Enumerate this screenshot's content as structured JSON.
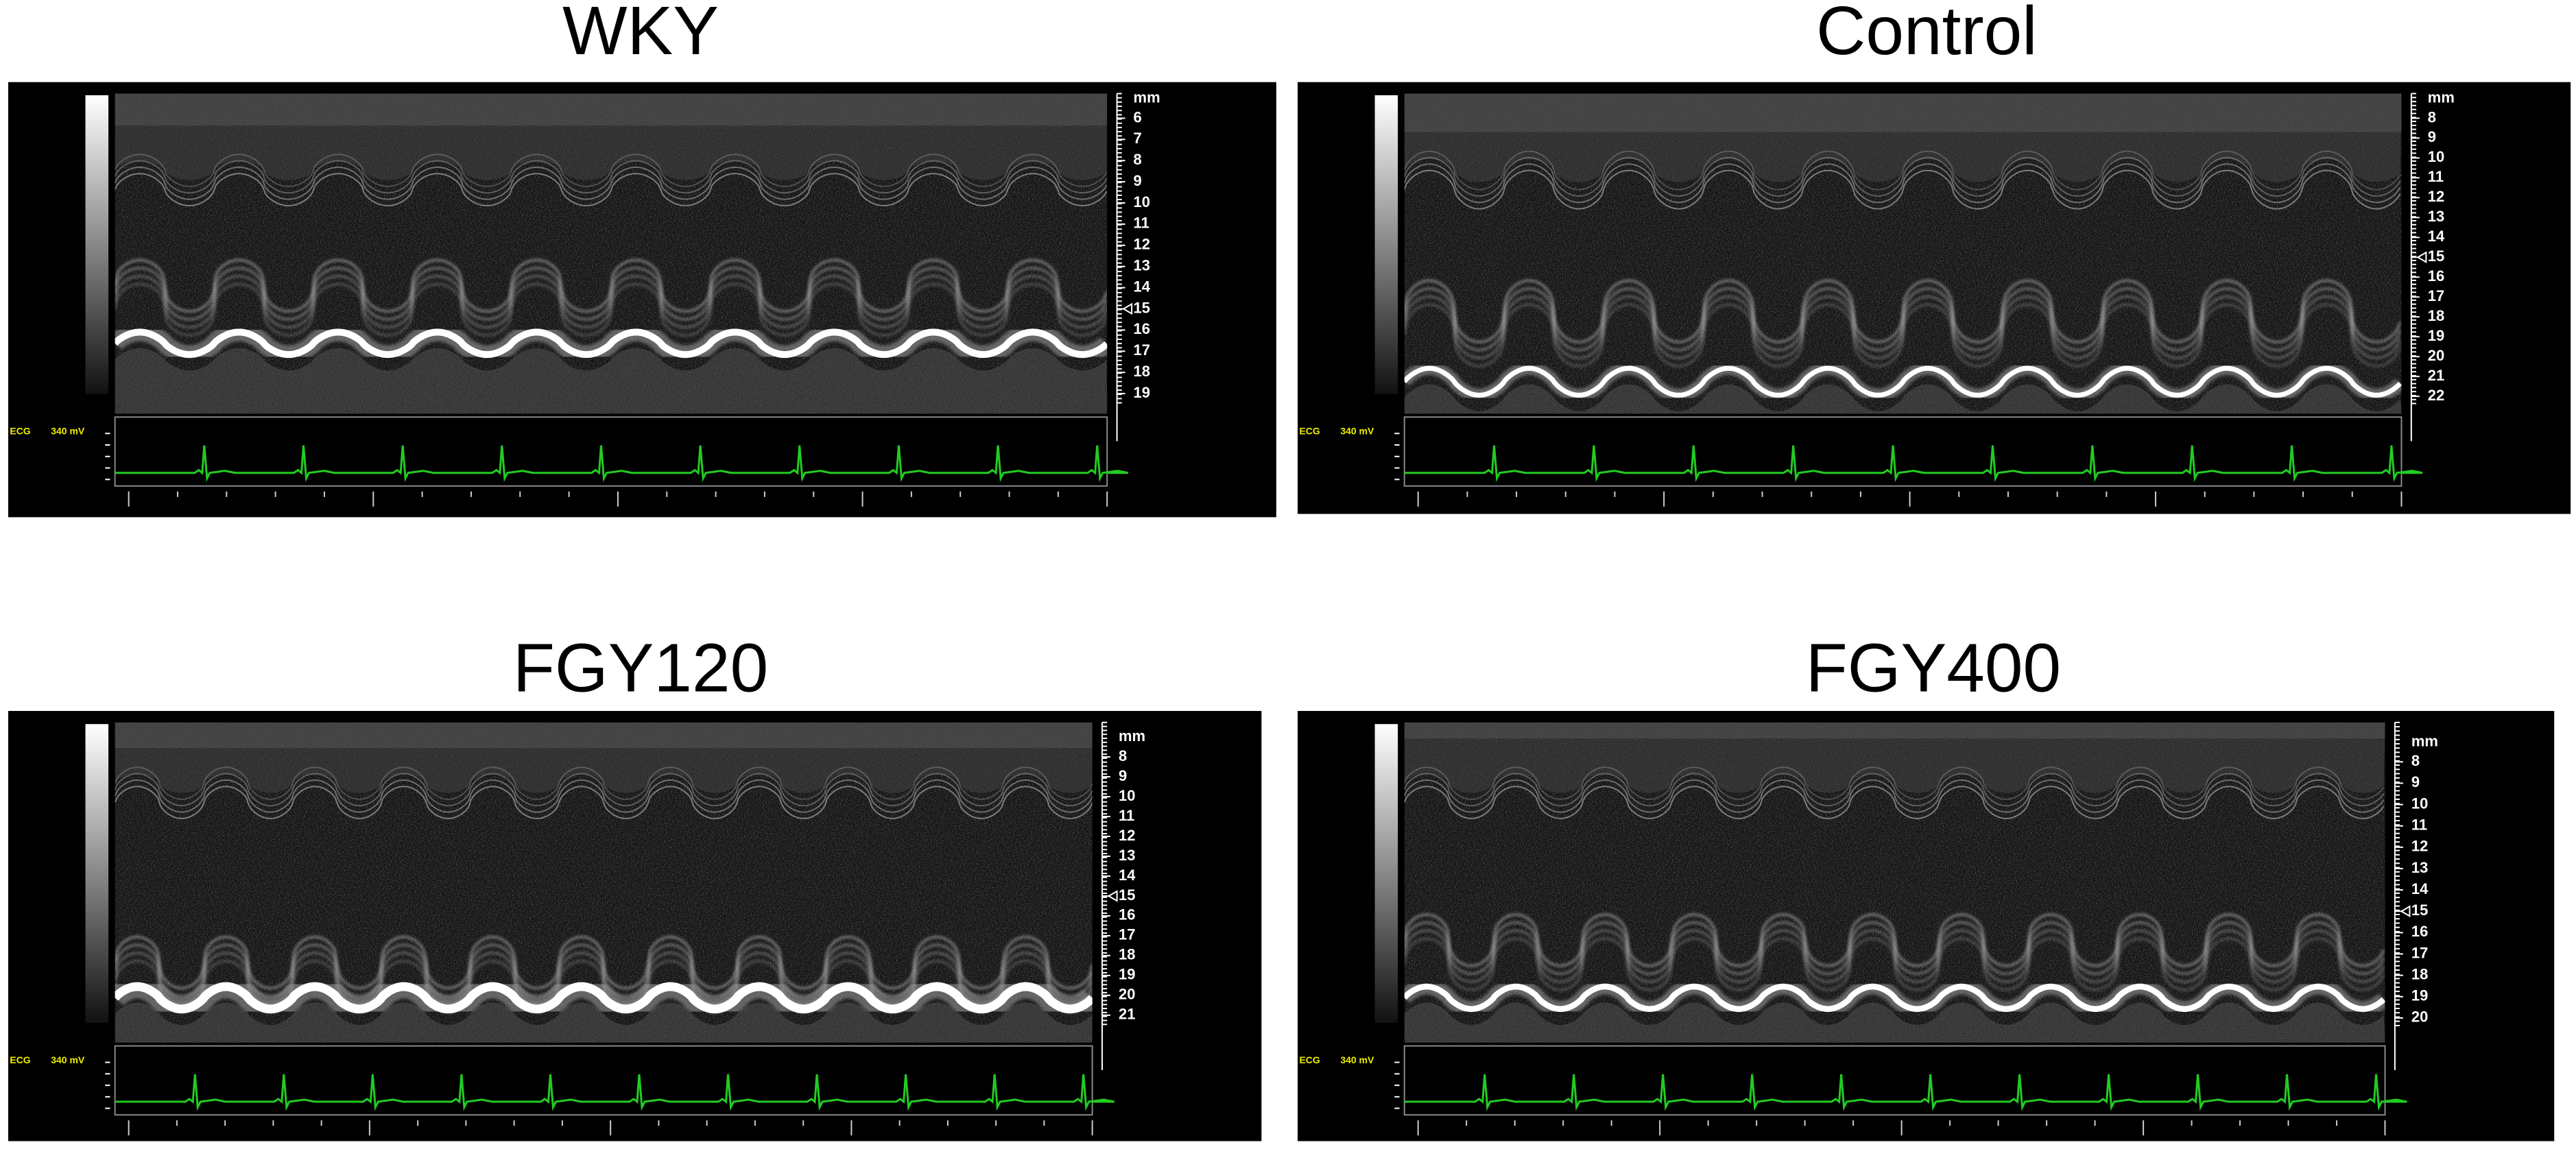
{
  "panels": [
    {
      "title": "WKY",
      "unit": "mm",
      "depth_labels": [
        6,
        7,
        8,
        9,
        10,
        11,
        12,
        13,
        14,
        15,
        16,
        17,
        18,
        19
      ],
      "marker": 15,
      "ecg_label": "ECG",
      "ecg_scale": "340 mV"
    },
    {
      "title": "Control",
      "unit": "mm",
      "depth_labels": [
        8,
        9,
        10,
        11,
        12,
        13,
        14,
        15,
        16,
        17,
        18,
        19,
        20,
        21,
        22
      ],
      "marker": 15,
      "ecg_label": "ECG",
      "ecg_scale": "340 mV"
    },
    {
      "title": "FGY120",
      "unit": "mm",
      "depth_labels": [
        8,
        9,
        10,
        11,
        12,
        13,
        14,
        15,
        16,
        17,
        18,
        19,
        20,
        21
      ],
      "marker": 15,
      "ecg_label": "ECG",
      "ecg_scale": "340 mV"
    },
    {
      "title": "FGY400",
      "unit": "mm",
      "depth_labels": [
        8,
        9,
        10,
        11,
        12,
        13,
        14,
        15,
        16,
        17,
        18,
        19,
        20
      ],
      "marker": 15,
      "ecg_label": "ECG",
      "ecg_scale": "340 mV"
    }
  ]
}
